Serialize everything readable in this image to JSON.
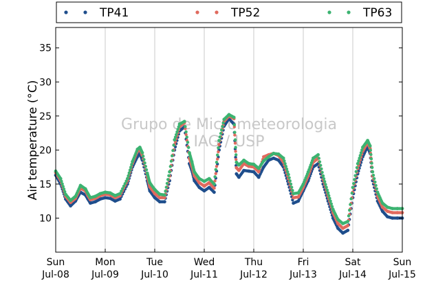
{
  "chart_data": {
    "type": "scatter",
    "title": "",
    "xlabel": "",
    "ylabel": "Air temperature (°C)",
    "ylim": [
      5,
      38
    ],
    "yticks": [
      10,
      15,
      20,
      25,
      30,
      35
    ],
    "grid": {
      "vertical": true,
      "horizontal": false
    },
    "legend_position": "top",
    "watermark": [
      "Grupo de Micrometeorologia",
      "IAG / USP"
    ],
    "x_ticks": [
      {
        "day": 0,
        "top": "Sun",
        "bottom": "Jul-08"
      },
      {
        "day": 1,
        "top": "Mon",
        "bottom": "Jul-09"
      },
      {
        "day": 2,
        "top": "Tue",
        "bottom": "Jul-10"
      },
      {
        "day": 3,
        "top": "Wed",
        "bottom": "Jul-11"
      },
      {
        "day": 4,
        "top": "Thu",
        "bottom": "Jul-12"
      },
      {
        "day": 5,
        "top": "Fri",
        "bottom": "Jul-13"
      },
      {
        "day": 6,
        "top": "Sat",
        "bottom": "Jul-14"
      },
      {
        "day": 7,
        "top": "Sun",
        "bottom": "Jul-15"
      }
    ],
    "series": [
      {
        "name": "TP41",
        "color": "#1f4e8c",
        "x": [
          0.0,
          0.1,
          0.2,
          0.3,
          0.4,
          0.5,
          0.6,
          0.65,
          0.7,
          0.8,
          0.9,
          1.0,
          1.1,
          1.2,
          1.3,
          1.45,
          1.55,
          1.65,
          1.7,
          1.75,
          1.85,
          1.9,
          2.0,
          2.1,
          2.2,
          2.3,
          2.4,
          2.5,
          2.6,
          2.7,
          2.75,
          2.8,
          2.9,
          3.0,
          3.1,
          3.2,
          3.3,
          3.4,
          3.5,
          3.6,
          3.65,
          3.7,
          3.8,
          3.9,
          4.0,
          4.1,
          4.2,
          4.3,
          4.4,
          4.5,
          4.6,
          4.7,
          4.8,
          4.9,
          5.0,
          5.1,
          5.2,
          5.3,
          5.4,
          5.5,
          5.6,
          5.7,
          5.8,
          5.9,
          6.0,
          6.1,
          6.2,
          6.3,
          6.35,
          6.4,
          6.5,
          6.6,
          6.7,
          6.8,
          6.9,
          7.0
        ],
        "y": [
          16.3,
          15.0,
          12.8,
          11.8,
          12.5,
          13.8,
          13.4,
          12.8,
          12.2,
          12.4,
          12.8,
          13.0,
          12.9,
          12.5,
          12.8,
          15.0,
          17.5,
          19.0,
          19.5,
          18.5,
          15.5,
          14.0,
          13.0,
          12.4,
          12.4,
          15.5,
          20.0,
          22.8,
          23.4,
          18.0,
          17.0,
          15.5,
          14.5,
          14.0,
          14.5,
          13.8,
          20.0,
          23.5,
          24.6,
          23.8,
          16.5,
          16.0,
          17.0,
          16.9,
          16.8,
          16.0,
          17.5,
          18.5,
          18.8,
          18.5,
          17.5,
          15.0,
          12.2,
          12.5,
          14.0,
          15.5,
          17.5,
          18.0,
          15.0,
          12.5,
          10.0,
          8.5,
          7.8,
          8.2,
          13.0,
          16.5,
          19.0,
          20.5,
          19.5,
          15.5,
          12.5,
          11.0,
          10.2,
          10.0,
          10.0,
          10.0
        ]
      },
      {
        "name": "TP52",
        "color": "#e06a5e",
        "x": [
          0.0,
          0.1,
          0.2,
          0.3,
          0.4,
          0.5,
          0.6,
          0.65,
          0.7,
          0.8,
          0.9,
          1.0,
          1.1,
          1.2,
          1.3,
          1.45,
          1.55,
          1.65,
          1.7,
          1.75,
          1.85,
          1.9,
          2.0,
          2.1,
          2.2,
          2.3,
          2.4,
          2.5,
          2.6,
          2.7,
          2.75,
          2.8,
          2.9,
          3.0,
          3.1,
          3.2,
          3.3,
          3.4,
          3.5,
          3.6,
          3.65,
          3.7,
          3.8,
          3.9,
          4.0,
          4.1,
          4.2,
          4.3,
          4.4,
          4.5,
          4.6,
          4.7,
          4.8,
          4.9,
          5.0,
          5.1,
          5.2,
          5.3,
          5.4,
          5.5,
          5.6,
          5.7,
          5.8,
          5.9,
          6.0,
          6.1,
          6.2,
          6.3,
          6.35,
          6.4,
          6.5,
          6.6,
          6.7,
          6.8,
          6.9,
          7.0
        ],
        "y": [
          16.7,
          15.5,
          13.2,
          12.3,
          12.9,
          14.4,
          14.0,
          13.3,
          12.7,
          12.9,
          13.3,
          13.5,
          13.4,
          13.0,
          13.3,
          15.5,
          18.0,
          19.8,
          20.1,
          19.2,
          16.1,
          14.6,
          13.6,
          13.0,
          13.0,
          16.2,
          20.8,
          23.4,
          24.0,
          18.8,
          17.6,
          16.2,
          15.2,
          14.7,
          15.2,
          14.4,
          20.8,
          24.2,
          25.0,
          24.6,
          17.4,
          17.0,
          18.0,
          17.6,
          17.5,
          16.8,
          19.0,
          19.3,
          19.5,
          19.2,
          18.2,
          15.8,
          13.0,
          13.1,
          14.5,
          16.2,
          18.2,
          18.8,
          15.7,
          13.2,
          10.8,
          9.2,
          8.5,
          8.9,
          13.8,
          17.3,
          19.8,
          21.1,
          20.2,
          16.2,
          13.2,
          11.6,
          11.0,
          10.8,
          10.8,
          10.8
        ]
      },
      {
        "name": "TP63",
        "color": "#3cb371",
        "x": [
          0.0,
          0.1,
          0.2,
          0.3,
          0.4,
          0.5,
          0.6,
          0.65,
          0.7,
          0.8,
          0.9,
          1.0,
          1.1,
          1.2,
          1.3,
          1.45,
          1.55,
          1.65,
          1.7,
          1.75,
          1.85,
          1.9,
          2.0,
          2.1,
          2.2,
          2.3,
          2.4,
          2.5,
          2.6,
          2.7,
          2.75,
          2.8,
          2.9,
          3.0,
          3.1,
          3.2,
          3.3,
          3.4,
          3.5,
          3.6,
          3.65,
          3.7,
          3.8,
          3.9,
          4.0,
          4.1,
          4.2,
          4.3,
          4.4,
          4.5,
          4.6,
          4.7,
          4.8,
          4.9,
          5.0,
          5.1,
          5.2,
          5.3,
          5.4,
          5.5,
          5.6,
          5.7,
          5.8,
          5.9,
          6.0,
          6.1,
          6.2,
          6.3,
          6.35,
          6.4,
          6.5,
          6.6,
          6.7,
          6.8,
          6.9,
          7.0
        ],
        "y": [
          16.9,
          15.8,
          13.5,
          12.6,
          13.2,
          14.8,
          14.3,
          13.6,
          13.0,
          13.2,
          13.6,
          13.8,
          13.7,
          13.3,
          13.6,
          15.8,
          18.3,
          20.1,
          20.4,
          19.6,
          16.6,
          15.2,
          14.2,
          13.5,
          13.4,
          16.8,
          21.5,
          23.8,
          24.2,
          19.6,
          18.3,
          16.8,
          15.8,
          15.4,
          15.8,
          15.0,
          21.4,
          24.5,
          25.2,
          24.8,
          18.2,
          17.8,
          18.5,
          18.0,
          17.9,
          17.3,
          18.4,
          19.0,
          19.5,
          19.4,
          18.8,
          16.4,
          13.6,
          13.7,
          15.0,
          16.8,
          18.8,
          19.3,
          16.2,
          13.7,
          11.3,
          9.8,
          9.2,
          9.5,
          14.5,
          18.0,
          20.4,
          21.4,
          20.6,
          16.8,
          13.8,
          12.2,
          11.6,
          11.4,
          11.4,
          11.4
        ]
      }
    ]
  }
}
